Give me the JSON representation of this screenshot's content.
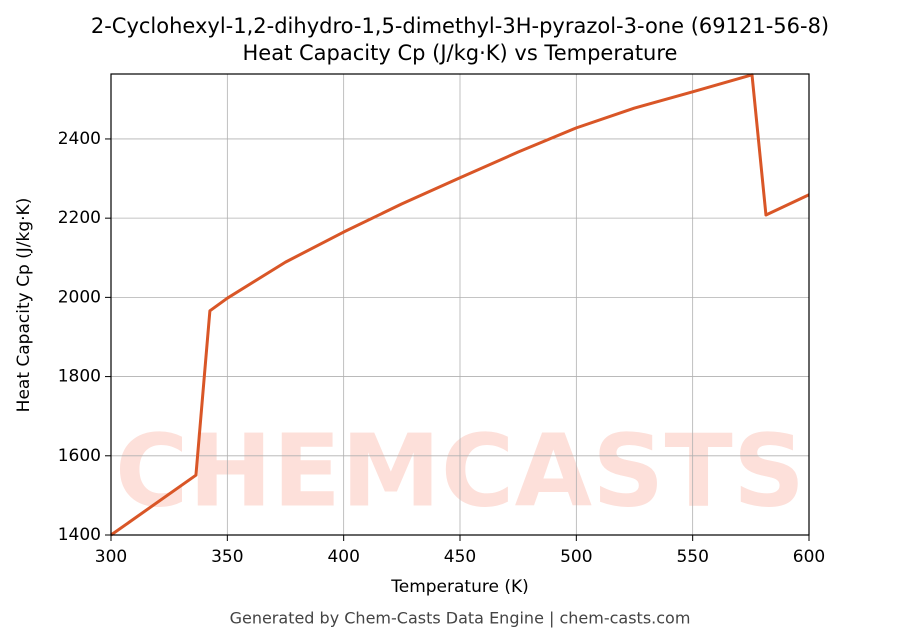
{
  "chart_data": {
    "type": "line",
    "title": "2-Cyclohexyl-1,2-dihydro-1,5-dimethyl-3H-pyrazol-3-one (69121-56-8)",
    "subtitle": "Heat Capacity Cp (J/kg·K) vs Temperature",
    "x_label": "Temperature (K)",
    "y_label": "Heat Capacity Cp (J/kg·K)",
    "footer": "Generated by Chem-Casts Data Engine | chem-casts.com",
    "watermark": "CHEMCASTS",
    "x": [
      300,
      336.5,
      342.5,
      350,
      375,
      400,
      425,
      450,
      475,
      500,
      525,
      550,
      575.5,
      581.5,
      600
    ],
    "series": [
      {
        "name": "Heat Capacity Cp",
        "color": "#d95627",
        "values": [
          1400,
          1551,
          1966,
          1998,
          2089,
          2165,
          2236,
          2302,
          2367,
          2428,
          2478,
          2519,
          2562,
          2208,
          2259
        ]
      }
    ],
    "xlim": [
      300,
      600
    ],
    "ylim": [
      1400,
      2564
    ],
    "xticks": [
      300,
      350,
      400,
      450,
      500,
      550,
      600
    ],
    "yticks": [
      1400,
      1600,
      1800,
      2000,
      2200,
      2400
    ],
    "grid": true
  }
}
